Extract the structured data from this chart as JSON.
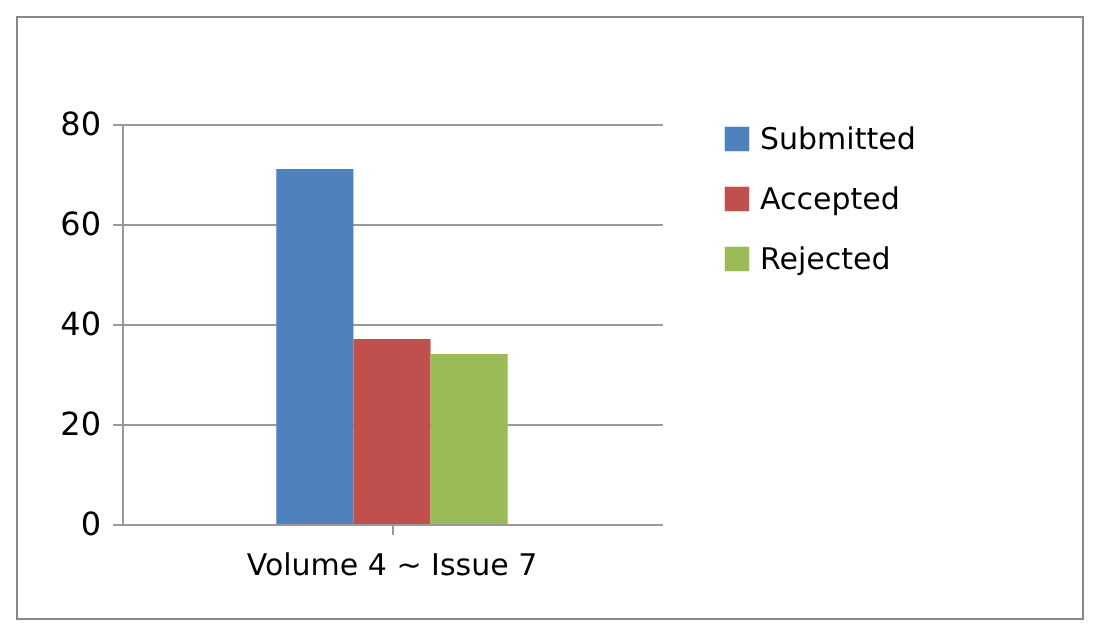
{
  "chart_data": {
    "type": "bar",
    "categories": [
      "Volume 4 ~ Issue 7"
    ],
    "series": [
      {
        "name": "Submitted",
        "color": "#4f81bd",
        "values": [
          71
        ]
      },
      {
        "name": "Accepted",
        "color": "#c0504d",
        "values": [
          37
        ]
      },
      {
        "name": "Rejected",
        "color": "#9bbb59",
        "values": [
          34
        ]
      }
    ],
    "ylim": [
      0,
      80
    ],
    "yticks": [
      0,
      20,
      40,
      60,
      80
    ],
    "grid": "y",
    "legend": "right"
  }
}
